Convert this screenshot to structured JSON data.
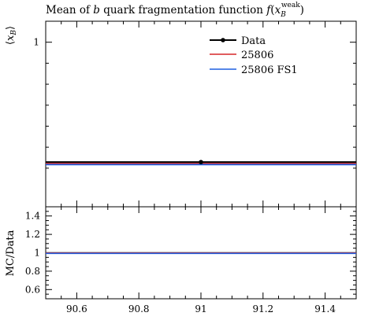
{
  "chart_data": [
    {
      "panel": "main",
      "type": "line",
      "title": "Mean of b quark fragmentation function f(x_B^weak)",
      "title_parts": {
        "prefix": "Mean of ",
        "b": "b",
        "middle": " quark fragmentation function ",
        "f": "f",
        "open": "(",
        "x": "x",
        "sub": "B",
        "sup": "weak",
        "close": ")"
      },
      "ylabel": "⟨x_B⟩",
      "ylabel_parts": {
        "open": "⟨",
        "x": "x",
        "sub": "B",
        "close": "⟩"
      },
      "xlim": [
        90.5,
        91.5
      ],
      "ylim": [
        0.608,
        1.05
      ],
      "yticks": [
        1
      ],
      "ytick_labels": [
        "1"
      ],
      "legend_position": "top-right",
      "series": [
        {
          "name": "Data",
          "color": "#000000",
          "marker": "dot",
          "x": [
            91.0
          ],
          "y": [
            0.7145
          ],
          "x_range": [
            90.5,
            91.5
          ]
        },
        {
          "name": "25806",
          "color": "#d62728",
          "x": [
            90.5,
            91.5
          ],
          "y": [
            0.711,
            0.711
          ]
        },
        {
          "name": "25806 FS1",
          "color": "#1f5fe0",
          "x": [
            90.5,
            91.5
          ],
          "y": [
            0.7085,
            0.7085
          ]
        }
      ]
    },
    {
      "panel": "ratio",
      "type": "line",
      "ylabel": "MC/Data",
      "xlabel": "",
      "xlim": [
        90.5,
        91.5
      ],
      "ylim": [
        0.5,
        1.5
      ],
      "xticks": [
        90.6,
        90.8,
        91.0,
        91.2,
        91.4
      ],
      "xtick_labels": [
        "90.6",
        "90.8",
        "91",
        "91.2",
        "91.4"
      ],
      "yticks": [
        0.6,
        0.8,
        1.0,
        1.2,
        1.4
      ],
      "ytick_labels": [
        "0.6",
        "0.8",
        "1",
        "1.2",
        "1.4"
      ],
      "band": {
        "color": "#f5e642",
        "y": [
          0.995,
          1.005
        ]
      },
      "series": [
        {
          "name": "Data",
          "color": "#000000",
          "y": [
            1.0,
            1.0
          ]
        },
        {
          "name": "25806",
          "color": "#d62728",
          "y": [
            0.997,
            0.997
          ]
        },
        {
          "name": "25806 FS1",
          "color": "#1f5fe0",
          "y": [
            0.993,
            0.993
          ]
        }
      ]
    }
  ]
}
